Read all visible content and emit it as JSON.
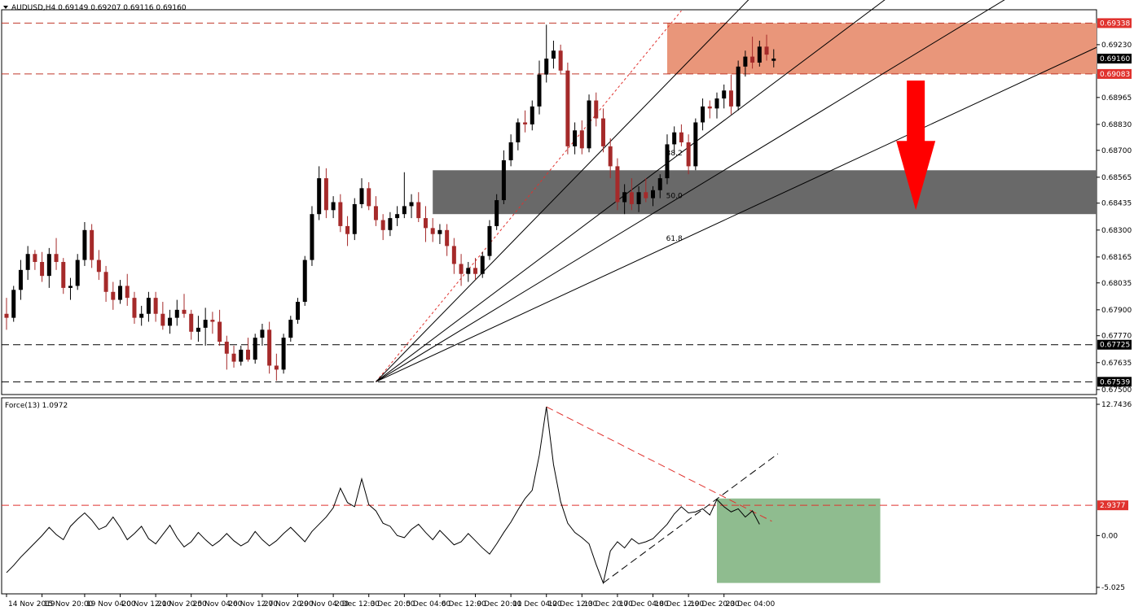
{
  "chart_data": {
    "type": "candlestick",
    "main": {
      "header": {
        "symbol": "AUDUSD,H4",
        "open": "0.69149",
        "high": "0.69207",
        "low": "0.69116",
        "close": "0.69160"
      },
      "ylim": [
        0.67475,
        0.69405
      ],
      "y_ticks": [
        "0.69338",
        "0.69230",
        "0.69160",
        "0.69083",
        "0.68965",
        "0.68830",
        "0.68700",
        "0.68565",
        "0.68435",
        "0.68300",
        "0.68165",
        "0.68035",
        "0.67900",
        "0.67770",
        "0.67725",
        "0.67635",
        "0.67539",
        "0.67500"
      ],
      "price_labels": [
        {
          "value": 0.69338,
          "text": "0.69338",
          "color": "#e0322e"
        },
        {
          "value": 0.69083,
          "text": "0.69083",
          "color": "#e0322e"
        },
        {
          "value": 0.6916,
          "text": "0.69160",
          "color": "#000000"
        },
        {
          "value": 0.67725,
          "text": "0.67725",
          "color": "#000000"
        },
        {
          "value": 0.67539,
          "text": "0.67539",
          "color": "#000000"
        }
      ],
      "hlines": [
        {
          "value": 0.69338,
          "color": "#c0392b"
        },
        {
          "value": 0.69083,
          "color": "#c0392b"
        },
        {
          "value": 0.67725,
          "color": "#000000"
        },
        {
          "value": 0.67539,
          "color": "#000000"
        }
      ],
      "zones": [
        {
          "name": "resistance-zone",
          "from": 0.69083,
          "to": 0.69338,
          "x_start": 93,
          "color": "#e9967a"
        },
        {
          "name": "support-zone",
          "from": 0.6838,
          "to": 0.686,
          "x_start": 60,
          "color": "#696969"
        }
      ],
      "fib_fan": {
        "origin": {
          "x": 52,
          "y": 0.67539
        },
        "top": {
          "x": 95,
          "y": 0.694
        },
        "levels": [
          {
            "label": "38.2",
            "y_at_top": 0.68689
          },
          {
            "label": "50.0",
            "y_at_top": 0.6847
          },
          {
            "label": "61.8",
            "y_at_top": 0.6825
          }
        ],
        "label_x": 94,
        "line_color": "#000000",
        "diagonal_color": "#e0322e"
      },
      "arrow": {
        "color": "#ff0000",
        "direction": "down",
        "x": 128,
        "from": 0.6905,
        "to": 0.684
      },
      "candles": [
        [
          0.6788,
          0.6796,
          0.678,
          0.6786
        ],
        [
          0.6786,
          0.6802,
          0.6784,
          0.68
        ],
        [
          0.68,
          0.6815,
          0.6795,
          0.681
        ],
        [
          0.681,
          0.6822,
          0.6805,
          0.6818
        ],
        [
          0.6818,
          0.682,
          0.681,
          0.6814
        ],
        [
          0.6814,
          0.6819,
          0.6804,
          0.6807
        ],
        [
          0.6807,
          0.6821,
          0.6801,
          0.6818
        ],
        [
          0.6818,
          0.6826,
          0.681,
          0.6814
        ],
        [
          0.6814,
          0.6816,
          0.6798,
          0.6801
        ],
        [
          0.6801,
          0.6806,
          0.6795,
          0.6802
        ],
        [
          0.6802,
          0.6818,
          0.68,
          0.6815
        ],
        [
          0.6815,
          0.6834,
          0.6812,
          0.683
        ],
        [
          0.683,
          0.6833,
          0.6811,
          0.6815
        ],
        [
          0.6815,
          0.682,
          0.6805,
          0.6809
        ],
        [
          0.6809,
          0.6812,
          0.6794,
          0.6799
        ],
        [
          0.6799,
          0.6804,
          0.679,
          0.6795
        ],
        [
          0.6795,
          0.6805,
          0.6793,
          0.6802
        ],
        [
          0.6802,
          0.6808,
          0.6792,
          0.6796
        ],
        [
          0.6796,
          0.6799,
          0.6783,
          0.6786
        ],
        [
          0.6786,
          0.6792,
          0.6782,
          0.6788
        ],
        [
          0.6788,
          0.6799,
          0.6784,
          0.6796
        ],
        [
          0.6796,
          0.6799,
          0.6784,
          0.6788
        ],
        [
          0.6788,
          0.6794,
          0.678,
          0.6782
        ],
        [
          0.6782,
          0.679,
          0.6778,
          0.6786
        ],
        [
          0.6786,
          0.6795,
          0.6782,
          0.679
        ],
        [
          0.679,
          0.6798,
          0.6786,
          0.6788
        ],
        [
          0.6788,
          0.679,
          0.6775,
          0.6779
        ],
        [
          0.6779,
          0.6787,
          0.6774,
          0.6781
        ],
        [
          0.6781,
          0.6791,
          0.6772,
          0.6785
        ],
        [
          0.6785,
          0.6789,
          0.6778,
          0.6784
        ],
        [
          0.6784,
          0.679,
          0.6772,
          0.6774
        ],
        [
          0.6774,
          0.6777,
          0.676,
          0.6768
        ],
        [
          0.6768,
          0.6772,
          0.6761,
          0.6764
        ],
        [
          0.6764,
          0.6772,
          0.6762,
          0.677
        ],
        [
          0.677,
          0.6776,
          0.6764,
          0.6765
        ],
        [
          0.6765,
          0.6778,
          0.6763,
          0.6776
        ],
        [
          0.6776,
          0.6783,
          0.6772,
          0.678
        ],
        [
          0.678,
          0.6784,
          0.6758,
          0.6762
        ],
        [
          0.6762,
          0.6768,
          0.67545,
          0.676
        ],
        [
          0.676,
          0.6778,
          0.6758,
          0.6776
        ],
        [
          0.6776,
          0.6787,
          0.6774,
          0.6785
        ],
        [
          0.6785,
          0.6796,
          0.6783,
          0.6794
        ],
        [
          0.6794,
          0.6817,
          0.6792,
          0.6815
        ],
        [
          0.6815,
          0.6842,
          0.6812,
          0.6838
        ],
        [
          0.6838,
          0.6862,
          0.6835,
          0.6856
        ],
        [
          0.6856,
          0.6861,
          0.6836,
          0.684
        ],
        [
          0.684,
          0.6847,
          0.6836,
          0.6844
        ],
        [
          0.6844,
          0.6848,
          0.6829,
          0.6832
        ],
        [
          0.6832,
          0.6837,
          0.6822,
          0.6828
        ],
        [
          0.6828,
          0.6846,
          0.6825,
          0.6843
        ],
        [
          0.6843,
          0.6856,
          0.6841,
          0.6851
        ],
        [
          0.6851,
          0.6854,
          0.684,
          0.6842
        ],
        [
          0.6842,
          0.6847,
          0.6832,
          0.6835
        ],
        [
          0.6835,
          0.6838,
          0.6825,
          0.683
        ],
        [
          0.683,
          0.6839,
          0.6827,
          0.6836
        ],
        [
          0.6836,
          0.6842,
          0.6832,
          0.6838
        ],
        [
          0.6838,
          0.6859,
          0.6836,
          0.6842
        ],
        [
          0.6842,
          0.6848,
          0.6836,
          0.6844
        ],
        [
          0.6844,
          0.6849,
          0.6834,
          0.6836
        ],
        [
          0.6836,
          0.6842,
          0.6824,
          0.6831
        ],
        [
          0.6831,
          0.6836,
          0.6824,
          0.6828
        ],
        [
          0.6828,
          0.6833,
          0.6823,
          0.683
        ],
        [
          0.683,
          0.6833,
          0.6817,
          0.6822
        ],
        [
          0.6822,
          0.6826,
          0.6808,
          0.6813
        ],
        [
          0.6813,
          0.6818,
          0.6802,
          0.6808
        ],
        [
          0.6808,
          0.6814,
          0.6804,
          0.6811
        ],
        [
          0.6811,
          0.6816,
          0.6805,
          0.6808
        ],
        [
          0.6808,
          0.6819,
          0.6806,
          0.6817
        ],
        [
          0.6817,
          0.6835,
          0.6815,
          0.6832
        ],
        [
          0.6832,
          0.6848,
          0.683,
          0.6845
        ],
        [
          0.6845,
          0.687,
          0.6843,
          0.6865
        ],
        [
          0.6865,
          0.6878,
          0.6862,
          0.6874
        ],
        [
          0.6874,
          0.6886,
          0.687,
          0.6884
        ],
        [
          0.6884,
          0.689,
          0.6879,
          0.6883
        ],
        [
          0.6883,
          0.6895,
          0.688,
          0.6892
        ],
        [
          0.6892,
          0.6915,
          0.6888,
          0.6908
        ],
        [
          0.6908,
          0.6933,
          0.6904,
          0.6916
        ],
        [
          0.6916,
          0.6925,
          0.6911,
          0.692
        ],
        [
          0.692,
          0.6923,
          0.6908,
          0.691
        ],
        [
          0.691,
          0.6914,
          0.6868,
          0.6872
        ],
        [
          0.6872,
          0.6884,
          0.6868,
          0.688
        ],
        [
          0.688,
          0.6885,
          0.6868,
          0.6871
        ],
        [
          0.6871,
          0.6898,
          0.6869,
          0.6895
        ],
        [
          0.6895,
          0.6899,
          0.6882,
          0.6886
        ],
        [
          0.6886,
          0.6891,
          0.6869,
          0.6872
        ],
        [
          0.6872,
          0.6876,
          0.6856,
          0.6862
        ],
        [
          0.6862,
          0.6866,
          0.684,
          0.6844
        ],
        [
          0.6844,
          0.6853,
          0.6838,
          0.6849
        ],
        [
          0.6849,
          0.6856,
          0.684,
          0.6843
        ],
        [
          0.6843,
          0.6852,
          0.6839,
          0.6849
        ],
        [
          0.6849,
          0.6856,
          0.6844,
          0.6846
        ],
        [
          0.6846,
          0.6852,
          0.6842,
          0.685
        ],
        [
          0.685,
          0.6858,
          0.6846,
          0.6856
        ],
        [
          0.6856,
          0.6878,
          0.6853,
          0.6873
        ],
        [
          0.6873,
          0.6882,
          0.6868,
          0.6879
        ],
        [
          0.6879,
          0.6883,
          0.6872,
          0.6874
        ],
        [
          0.6874,
          0.6878,
          0.6858,
          0.6862
        ],
        [
          0.6862,
          0.6886,
          0.686,
          0.6884
        ],
        [
          0.6884,
          0.6896,
          0.688,
          0.6892
        ],
        [
          0.6892,
          0.6895,
          0.6886,
          0.6891
        ],
        [
          0.6891,
          0.6899,
          0.6886,
          0.6896
        ],
        [
          0.6896,
          0.6903,
          0.6891,
          0.69
        ],
        [
          0.69,
          0.6908,
          0.6888,
          0.6892
        ],
        [
          0.6892,
          0.6915,
          0.689,
          0.6912
        ],
        [
          0.6912,
          0.692,
          0.6907,
          0.6917
        ],
        [
          0.6917,
          0.6927,
          0.6911,
          0.6914
        ],
        [
          0.6914,
          0.6925,
          0.6912,
          0.6922
        ],
        [
          0.6922,
          0.6928,
          0.6915,
          0.6918
        ],
        [
          0.69149,
          0.69207,
          0.69116,
          0.6916
        ]
      ]
    },
    "force": {
      "title": "Force(13) 1.0972",
      "ylim": [
        -5.025,
        12.7436
      ],
      "y_ticks": [
        "12.7436",
        "0.00",
        "-5.025"
      ],
      "level": {
        "value": 2.9377,
        "text": "2.9377",
        "color": "#e0322e"
      },
      "zone": {
        "x_from": 100,
        "x_to": 123,
        "y_from": -4.6,
        "y_to": 3.6,
        "color": "#8fbc8f"
      },
      "values": [
        -3.6,
        -2.9,
        -2.1,
        -1.4,
        -0.7,
        0.0,
        0.8,
        0.1,
        -0.4,
        0.9,
        1.6,
        2.2,
        1.5,
        0.6,
        0.9,
        1.8,
        0.8,
        -0.4,
        0.2,
        0.9,
        -0.3,
        -0.8,
        0.1,
        1.0,
        -0.2,
        -1.1,
        -0.6,
        0.3,
        -0.4,
        -1.0,
        -0.5,
        0.2,
        -0.5,
        -1.0,
        -0.6,
        0.4,
        -0.4,
        -1.0,
        -0.5,
        0.2,
        0.8,
        0.1,
        -0.6,
        0.4,
        1.1,
        1.8,
        2.7,
        4.6,
        3.2,
        2.8,
        5.5,
        3.0,
        2.4,
        1.2,
        0.9,
        0.0,
        -0.2,
        0.6,
        1.1,
        0.3,
        -0.4,
        0.5,
        -0.2,
        -0.9,
        -0.6,
        0.2,
        -0.5,
        -1.2,
        -1.8,
        -0.8,
        0.3,
        1.3,
        2.5,
        3.6,
        4.4,
        7.8,
        12.5,
        6.9,
        3.3,
        1.2,
        0.3,
        -0.2,
        -0.8,
        -2.8,
        -4.6,
        -1.5,
        -0.6,
        -1.2,
        -0.3,
        -0.8,
        -0.6,
        -0.3,
        0.4,
        1.1,
        2.1,
        2.8,
        2.2,
        2.3,
        2.6,
        2.0,
        3.5,
        2.8,
        2.3,
        2.6,
        1.8,
        2.4,
        1.0972
      ],
      "trend_red": {
        "x1": 76,
        "v1": 12.5,
        "x2": 102,
        "v2": 3.4
      },
      "trend_black": {
        "x1": 84,
        "v1": -4.6,
        "x2": 104,
        "v2": 5.6
      }
    },
    "x_ticks": [
      {
        "i": 0,
        "text": "14 Nov 2019"
      },
      {
        "i": 5,
        "text": "15 Nov 20:00"
      },
      {
        "i": 11,
        "text": "19 Nov 04:00"
      },
      {
        "i": 16,
        "text": "20 Nov 12:00"
      },
      {
        "i": 21,
        "text": "21 Nov 20:00"
      },
      {
        "i": 26,
        "text": "25 Nov 04:00"
      },
      {
        "i": 31,
        "text": "26 Nov 12:00"
      },
      {
        "i": 36,
        "text": "27 Nov 20:00"
      },
      {
        "i": 41,
        "text": "29 Nov 04:00"
      },
      {
        "i": 46,
        "text": "2 Dec 12:00"
      },
      {
        "i": 51,
        "text": "3 Dec 20:00"
      },
      {
        "i": 56,
        "text": "5 Dec 04:00"
      },
      {
        "i": 61,
        "text": "6 Dec 12:00"
      },
      {
        "i": 66,
        "text": "9 Dec 20:00"
      },
      {
        "i": 71,
        "text": "11 Dec 04:00"
      },
      {
        "i": 76,
        "text": "12 Dec 12:00"
      },
      {
        "i": 81,
        "text": "13 Dec 20:00"
      },
      {
        "i": 86,
        "text": "17 Dec 04:00"
      },
      {
        "i": 91,
        "text": "18 Dec 12:00"
      },
      {
        "i": 96,
        "text": "19 Dec 20:00"
      },
      {
        "i": 101,
        "text": "23 Dec 04:00"
      }
    ]
  }
}
